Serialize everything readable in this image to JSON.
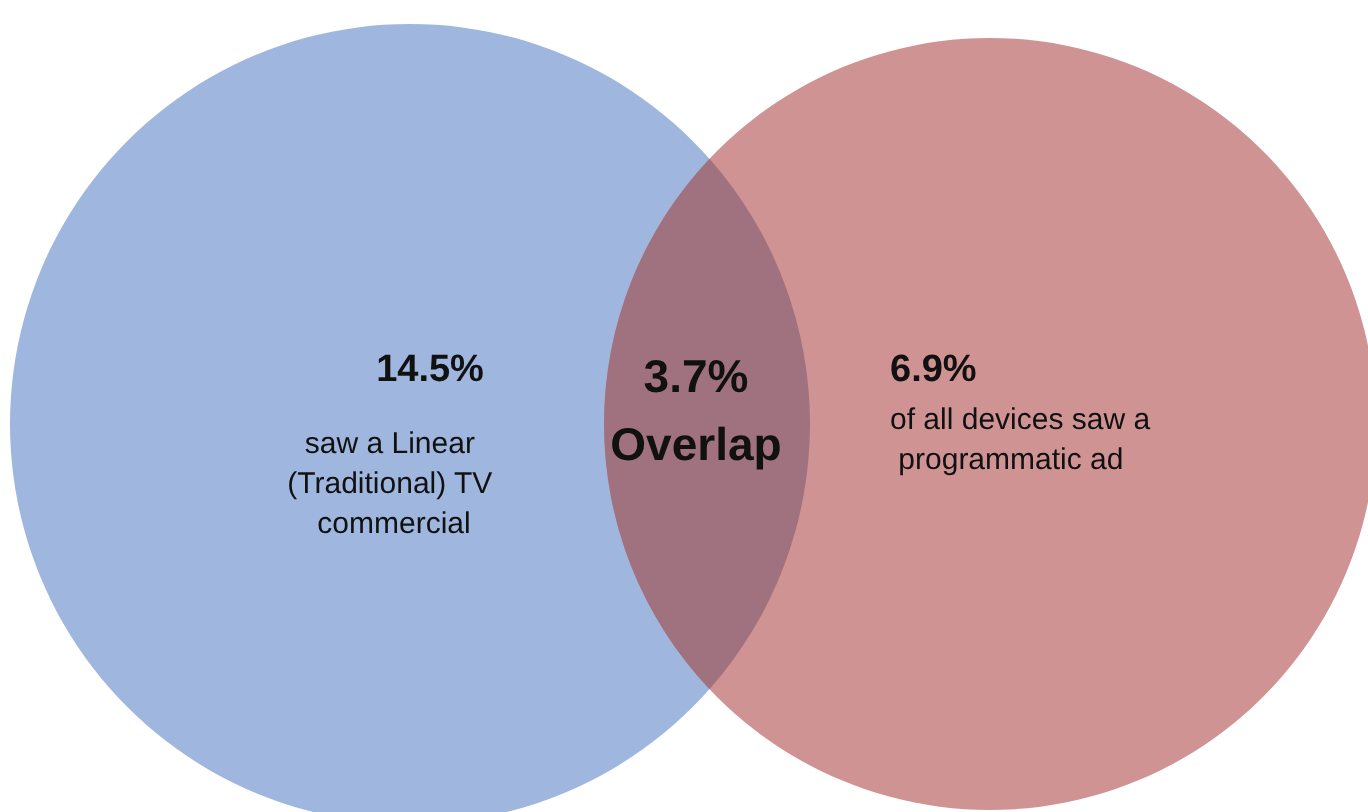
{
  "chart_data": {
    "type": "other",
    "categories": [
      "saw a Linear (Traditional) TV commercial",
      "of all devices saw a programmatic ad",
      "Overlap"
    ],
    "values": [
      14.5,
      6.9,
      3.7
    ],
    "value_labels": [
      "14.5%",
      "6.9%",
      "3.7%"
    ],
    "colors": [
      "#9fb6de",
      "#d09394",
      "#a0717f"
    ]
  }
}
